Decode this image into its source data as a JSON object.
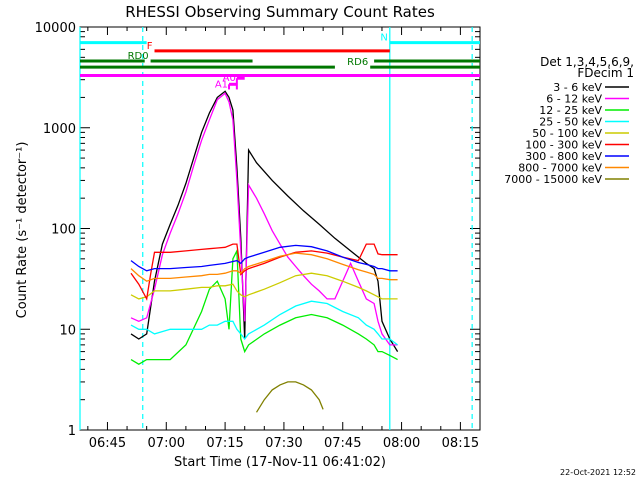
{
  "chart_data": {
    "type": "line",
    "title": "RHESSI Observing Summary Count Rates",
    "xlabel": "Start Time (17-Nov-11 06:41:02)",
    "ylabel": "Count Rate (s⁻¹ detector⁻¹)",
    "ylog": true,
    "ylim": [
      1,
      10000
    ],
    "xlim_min": [
      -3,
      99
    ],
    "y_ticks": [
      "1",
      "10",
      "100",
      "1000",
      "10000"
    ],
    "x_ticks": [
      {
        "label": "06:45",
        "min": 4
      },
      {
        "label": "07:00",
        "min": 19
      },
      {
        "label": "07:15",
        "min": 34
      },
      {
        "label": "07:30",
        "min": 49
      },
      {
        "label": "07:45",
        "min": 64
      },
      {
        "label": "08:00",
        "min": 79
      },
      {
        "label": "08:15",
        "min": 94
      }
    ],
    "legend_header": [
      "Det 1,3,4,5,6,9,",
      "FDecim 1"
    ],
    "legend_position": "right",
    "series": [
      {
        "name": "3 - 6 keV",
        "color": "#000000",
        "points": [
          [
            10,
            9
          ],
          [
            12,
            8
          ],
          [
            14,
            9
          ],
          [
            16,
            30
          ],
          [
            18,
            70
          ],
          [
            20,
            110
          ],
          [
            22,
            170
          ],
          [
            24,
            280
          ],
          [
            26,
            500
          ],
          [
            28,
            900
          ],
          [
            30,
            1400
          ],
          [
            32,
            2000
          ],
          [
            34,
            2300
          ],
          [
            35,
            2000
          ],
          [
            36,
            1500
          ],
          [
            37,
            400
          ],
          [
            38,
            80
          ],
          [
            39,
            8
          ],
          [
            40,
            600
          ],
          [
            42,
            450
          ],
          [
            46,
            300
          ],
          [
            50,
            210
          ],
          [
            54,
            150
          ],
          [
            58,
            110
          ],
          [
            62,
            80
          ],
          [
            66,
            60
          ],
          [
            70,
            45
          ],
          [
            72,
            40
          ],
          [
            73,
            30
          ],
          [
            74,
            12
          ],
          [
            76,
            8
          ],
          [
            78,
            6
          ]
        ]
      },
      {
        "name": "6 - 12 keV",
        "color": "#ff00ff",
        "points": [
          [
            10,
            13
          ],
          [
            12,
            12
          ],
          [
            14,
            13
          ],
          [
            16,
            25
          ],
          [
            18,
            55
          ],
          [
            20,
            90
          ],
          [
            22,
            140
          ],
          [
            24,
            230
          ],
          [
            26,
            420
          ],
          [
            28,
            750
          ],
          [
            30,
            1200
          ],
          [
            32,
            1900
          ],
          [
            34,
            2200
          ],
          [
            35,
            1800
          ],
          [
            36,
            1200
          ],
          [
            37,
            300
          ],
          [
            38,
            60
          ],
          [
            39,
            12
          ],
          [
            40,
            270
          ],
          [
            42,
            200
          ],
          [
            44,
            140
          ],
          [
            46,
            95
          ],
          [
            48,
            70
          ],
          [
            50,
            52
          ],
          [
            52,
            42
          ],
          [
            54,
            34
          ],
          [
            56,
            28
          ],
          [
            58,
            24
          ],
          [
            60,
            20
          ],
          [
            62,
            20
          ],
          [
            64,
            30
          ],
          [
            66,
            45
          ],
          [
            68,
            30
          ],
          [
            70,
            20
          ],
          [
            72,
            18
          ],
          [
            73,
            12
          ],
          [
            74,
            9
          ],
          [
            76,
            7
          ],
          [
            78,
            7
          ]
        ]
      },
      {
        "name": "12 - 25 keV",
        "color": "#00ee00",
        "points": [
          [
            10,
            5
          ],
          [
            12,
            4.5
          ],
          [
            14,
            5
          ],
          [
            16,
            5
          ],
          [
            20,
            5
          ],
          [
            24,
            7
          ],
          [
            28,
            15
          ],
          [
            30,
            25
          ],
          [
            32,
            30
          ],
          [
            34,
            20
          ],
          [
            35,
            10
          ],
          [
            36,
            50
          ],
          [
            37,
            60
          ],
          [
            38,
            8
          ],
          [
            39,
            6
          ],
          [
            40,
            7
          ],
          [
            44,
            9
          ],
          [
            48,
            11
          ],
          [
            52,
            13
          ],
          [
            56,
            14
          ],
          [
            60,
            13
          ],
          [
            64,
            11
          ],
          [
            68,
            9
          ],
          [
            70,
            8
          ],
          [
            72,
            7
          ],
          [
            73,
            6
          ],
          [
            74,
            6
          ],
          [
            76,
            5.5
          ],
          [
            78,
            5
          ]
        ]
      },
      {
        "name": "25 - 50 keV",
        "color": "#00ffff",
        "points": [
          [
            10,
            11
          ],
          [
            12,
            10
          ],
          [
            14,
            10
          ],
          [
            16,
            9
          ],
          [
            20,
            10
          ],
          [
            24,
            10
          ],
          [
            28,
            10
          ],
          [
            30,
            11
          ],
          [
            32,
            11
          ],
          [
            34,
            12
          ],
          [
            36,
            12
          ],
          [
            37,
            10
          ],
          [
            38,
            9
          ],
          [
            39,
            8
          ],
          [
            40,
            9
          ],
          [
            44,
            11
          ],
          [
            48,
            14
          ],
          [
            52,
            17
          ],
          [
            56,
            19
          ],
          [
            60,
            18
          ],
          [
            64,
            15
          ],
          [
            68,
            13
          ],
          [
            70,
            11
          ],
          [
            72,
            10
          ],
          [
            73,
            9
          ],
          [
            74,
            8
          ],
          [
            76,
            8
          ],
          [
            78,
            7
          ]
        ]
      },
      {
        "name": "50 - 100 keV",
        "color": "#cccc00",
        "points": [
          [
            10,
            22
          ],
          [
            12,
            20
          ],
          [
            14,
            21
          ],
          [
            16,
            24
          ],
          [
            20,
            24
          ],
          [
            24,
            25
          ],
          [
            28,
            26
          ],
          [
            30,
            26
          ],
          [
            32,
            27
          ],
          [
            34,
            27
          ],
          [
            36,
            28
          ],
          [
            37,
            24
          ],
          [
            38,
            22
          ],
          [
            39,
            21
          ],
          [
            40,
            22
          ],
          [
            44,
            25
          ],
          [
            48,
            29
          ],
          [
            52,
            34
          ],
          [
            56,
            36
          ],
          [
            60,
            34
          ],
          [
            64,
            30
          ],
          [
            68,
            26
          ],
          [
            70,
            24
          ],
          [
            72,
            22
          ],
          [
            73,
            21
          ],
          [
            74,
            20
          ],
          [
            76,
            20
          ],
          [
            78,
            20
          ]
        ]
      },
      {
        "name": "100 - 300 keV",
        "color": "#ff0000",
        "points": [
          [
            10,
            36
          ],
          [
            12,
            28
          ],
          [
            14,
            20
          ],
          [
            15,
            35
          ],
          [
            16,
            58
          ],
          [
            20,
            58
          ],
          [
            24,
            60
          ],
          [
            28,
            62
          ],
          [
            30,
            63
          ],
          [
            32,
            64
          ],
          [
            34,
            65
          ],
          [
            36,
            70
          ],
          [
            37,
            70
          ],
          [
            38,
            35
          ],
          [
            39,
            38
          ],
          [
            40,
            40
          ],
          [
            44,
            45
          ],
          [
            48,
            52
          ],
          [
            52,
            58
          ],
          [
            56,
            60
          ],
          [
            60,
            57
          ],
          [
            64,
            52
          ],
          [
            68,
            48
          ],
          [
            70,
            70
          ],
          [
            72,
            70
          ],
          [
            73,
            56
          ],
          [
            74,
            55
          ],
          [
            76,
            55
          ],
          [
            78,
            55
          ]
        ]
      },
      {
        "name": "300 - 800 keV",
        "color": "#0000ff",
        "points": [
          [
            10,
            48
          ],
          [
            12,
            42
          ],
          [
            14,
            38
          ],
          [
            16,
            40
          ],
          [
            20,
            40
          ],
          [
            24,
            41
          ],
          [
            28,
            42
          ],
          [
            30,
            43
          ],
          [
            32,
            44
          ],
          [
            34,
            45
          ],
          [
            36,
            47
          ],
          [
            37,
            48
          ],
          [
            38,
            45
          ],
          [
            39,
            50
          ],
          [
            40,
            52
          ],
          [
            44,
            58
          ],
          [
            48,
            65
          ],
          [
            52,
            68
          ],
          [
            56,
            66
          ],
          [
            60,
            60
          ],
          [
            64,
            52
          ],
          [
            68,
            46
          ],
          [
            70,
            44
          ],
          [
            72,
            42
          ],
          [
            73,
            40
          ],
          [
            74,
            40
          ],
          [
            76,
            38
          ],
          [
            78,
            38
          ]
        ]
      },
      {
        "name": "800 - 7000 keV",
        "color": "#ff8800",
        "points": [
          [
            10,
            40
          ],
          [
            12,
            34
          ],
          [
            14,
            30
          ],
          [
            16,
            32
          ],
          [
            20,
            32
          ],
          [
            24,
            33
          ],
          [
            28,
            34
          ],
          [
            30,
            35
          ],
          [
            32,
            35
          ],
          [
            34,
            36
          ],
          [
            36,
            38
          ],
          [
            37,
            38
          ],
          [
            38,
            36
          ],
          [
            39,
            40
          ],
          [
            40,
            42
          ],
          [
            44,
            47
          ],
          [
            48,
            53
          ],
          [
            52,
            57
          ],
          [
            56,
            55
          ],
          [
            60,
            50
          ],
          [
            64,
            44
          ],
          [
            68,
            39
          ],
          [
            70,
            37
          ],
          [
            72,
            35
          ],
          [
            73,
            32
          ],
          [
            74,
            32
          ],
          [
            76,
            31
          ],
          [
            78,
            31
          ]
        ]
      },
      {
        "name": "7000 - 15000 keV",
        "color": "#808000",
        "points": [
          [
            42,
            1.5
          ],
          [
            44,
            2.0
          ],
          [
            46,
            2.5
          ],
          [
            48,
            2.8
          ],
          [
            50,
            3.0
          ],
          [
            52,
            3.0
          ],
          [
            54,
            2.8
          ],
          [
            56,
            2.5
          ],
          [
            58,
            2.0
          ],
          [
            59,
            1.6
          ]
        ]
      }
    ],
    "attenuator_states": [
      {
        "label": "A1",
        "start": 35,
        "end": 37,
        "level": 2700
      },
      {
        "label": "A0",
        "start": 37,
        "end": 39,
        "level": 3100
      }
    ],
    "flag_bars": [
      {
        "label": "N",
        "color": "#00ffff",
        "segments": [
          [
            -3,
            14
          ],
          [
            76,
            99
          ]
        ],
        "level": 7000
      },
      {
        "label": "F",
        "color": "#ff0000",
        "segments": [
          [
            16,
            76
          ]
        ],
        "level": 5800
      },
      {
        "label": "RD0",
        "color": "#007700",
        "segments": [
          [
            -3,
            13.5
          ],
          [
            15,
            41
          ],
          [
            72,
            99
          ]
        ],
        "level": 4600
      },
      {
        "label": "RD6",
        "color": "#007700",
        "segments": [
          [
            -3,
            62
          ],
          [
            71,
            99
          ]
        ],
        "level": 4000
      },
      {
        "label": "",
        "color": "#ff00ff",
        "segments": [
          [
            -3,
            99
          ]
        ],
        "level": 3300
      }
    ],
    "vlines_dashed_cyan": [
      13,
      97
    ],
    "vline_cyan_solid": [
      -3,
      76
    ]
  },
  "footer_date": "22-Oct-2021 12:52"
}
